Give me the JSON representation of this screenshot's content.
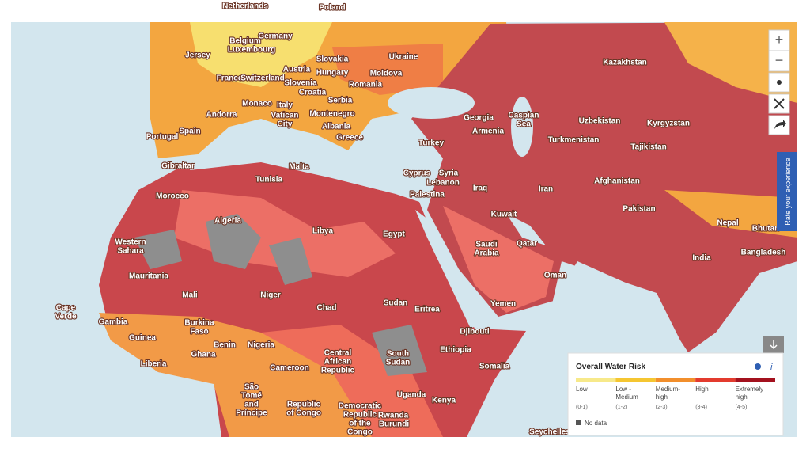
{
  "map": {
    "labels": [
      [
        "Netherlands"
      ],
      [
        "Poland"
      ],
      [
        "Belgium"
      ],
      [
        "Germany"
      ],
      [
        "Jersey"
      ],
      [
        "Luxembourg"
      ],
      [
        "Slovakia"
      ],
      [
        "Ukraine"
      ],
      [
        "Austria"
      ],
      [
        "Hungary"
      ],
      [
        "Moldova"
      ],
      [
        "France"
      ],
      [
        "Switzerland"
      ],
      [
        "Slovenia"
      ],
      [
        "Romania"
      ],
      [
        "Croatia"
      ],
      [
        "Serbia"
      ],
      [
        "Monaco"
      ],
      [
        "Italy"
      ],
      [
        "Andorra"
      ],
      [
        "Vatican",
        "City"
      ],
      [
        "Montenegro"
      ],
      [
        "Albania"
      ],
      [
        "Spain"
      ],
      [
        "Portugal"
      ],
      [
        "Greece"
      ],
      [
        "Georgia"
      ],
      [
        "Caspian",
        "Sea"
      ],
      [
        "Armenia"
      ],
      [
        "Turkey"
      ],
      [
        "Kazakhstan"
      ],
      [
        "Uzbekistan"
      ],
      [
        "Kyrgyzstan"
      ],
      [
        "Turkmenistan"
      ],
      [
        "Tajikistan"
      ],
      [
        "Gibraltar"
      ],
      [
        "Malta"
      ],
      [
        "Tunisia"
      ],
      [
        "Cyprus"
      ],
      [
        "Syria"
      ],
      [
        "Lebanon"
      ],
      [
        "Iraq"
      ],
      [
        "Iran"
      ],
      [
        "Afghanistan"
      ],
      [
        "Palestina"
      ],
      [
        "Morocco"
      ],
      [
        "Kuwait"
      ],
      [
        "Pakistan"
      ],
      [
        "Algeria"
      ],
      [
        "Libya"
      ],
      [
        "Egypt"
      ],
      [
        "Nepal"
      ],
      [
        "Bhutan"
      ],
      [
        "Western",
        "Sahara"
      ],
      [
        "Saudi",
        "Arabia"
      ],
      [
        "Qatar"
      ],
      [
        "India"
      ],
      [
        "Bangladesh"
      ],
      [
        "Mauritania"
      ],
      [
        "Oman"
      ],
      [
        "Mali"
      ],
      [
        "Niger"
      ],
      [
        "Chad"
      ],
      [
        "Sudan"
      ],
      [
        "Yemen"
      ],
      [
        "Eritrea"
      ],
      [
        "Cape",
        "Verde"
      ],
      [
        "Gambia"
      ],
      [
        "Burkina",
        "Faso"
      ],
      [
        "Djibouti"
      ],
      [
        "Guinea"
      ],
      [
        "Benin"
      ],
      [
        "Nigeria"
      ],
      [
        "Central",
        "African",
        "Republic"
      ],
      [
        "South",
        "Sudan"
      ],
      [
        "Ethiopia"
      ],
      [
        "Liberia"
      ],
      [
        "Ghana"
      ],
      [
        "Cameroon"
      ],
      [
        "Somalia"
      ],
      [
        "São",
        "Tomé",
        "and",
        "Príncipe"
      ],
      [
        "Republic",
        "of Congo"
      ],
      [
        "Democratic",
        "Republic",
        "of the",
        "Congo"
      ],
      [
        "Uganda"
      ],
      [
        "Kenya"
      ],
      [
        "Rwanda"
      ],
      [
        "Burundi"
      ],
      [
        "Seychelles"
      ]
    ]
  },
  "controls": {
    "zoom_in": "+",
    "zoom_out": "−",
    "feedback": "Rate your experience"
  },
  "legend": {
    "title": "Overall Water Risk",
    "info": "i",
    "items": [
      {
        "label": [
          "Low"
        ],
        "range": "(0-1)",
        "color": "#f7e98a"
      },
      {
        "label": [
          "Low -",
          "Medium"
        ],
        "range": "(1-2)",
        "color": "#f5c631"
      },
      {
        "label": [
          "Medium-",
          "high"
        ],
        "range": "(2-3)",
        "color": "#f28f2c"
      },
      {
        "label": [
          "High"
        ],
        "range": "(3-4)",
        "color": "#e33b2e"
      },
      {
        "label": [
          "Extremely",
          "high"
        ],
        "range": "(4-5)",
        "color": "#a3111e"
      }
    ],
    "no_data": {
      "label": "No data",
      "color": "#555555"
    }
  }
}
